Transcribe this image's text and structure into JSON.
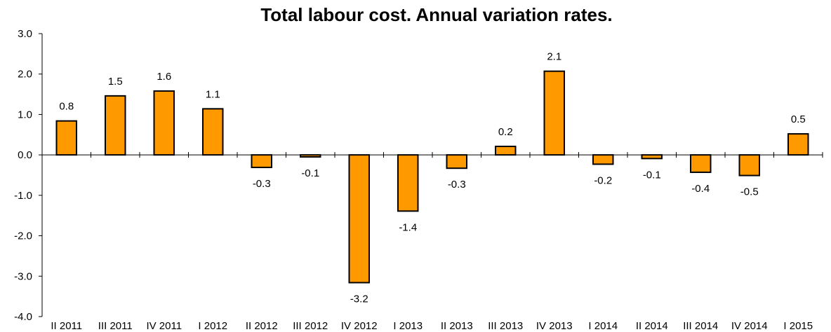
{
  "chart_data": {
    "type": "bar",
    "title": "Total labour cost. Annual variation rates.",
    "categories": [
      "II 2011",
      "III 2011",
      "IV 2011",
      "I 2012",
      "II 2012",
      "III 2012",
      "IV 2012",
      "I 2013",
      "II 2013",
      "III 2013",
      "IV 2013",
      "I 2014",
      "II 2014",
      "III 2014",
      "IV 2014",
      "I 2015"
    ],
    "values": [
      0.84,
      1.46,
      1.58,
      1.14,
      -0.31,
      -0.05,
      -3.16,
      -1.39,
      -0.33,
      0.21,
      2.07,
      -0.23,
      -0.09,
      -0.43,
      -0.51,
      0.52
    ],
    "data_labels": [
      "0.8",
      "1.5",
      "1.6",
      "1.1",
      "-0.3",
      "-0.1",
      "-3.2",
      "-1.4",
      "-0.3",
      "0.2",
      "2.1",
      "-0.2",
      "-0.1",
      "-0.4",
      "-0.5",
      "0.5"
    ],
    "ylim": [
      -4.0,
      3.0
    ],
    "yticks": [
      "-4.0",
      "-3.0",
      "-2.0",
      "-1.0",
      "0.0",
      "1.0",
      "2.0",
      "3.0"
    ],
    "xlabel": "",
    "ylabel": "",
    "grid": false,
    "legend": "none",
    "bar_color": "#FF9900",
    "bar_edge_color": "#000000"
  }
}
